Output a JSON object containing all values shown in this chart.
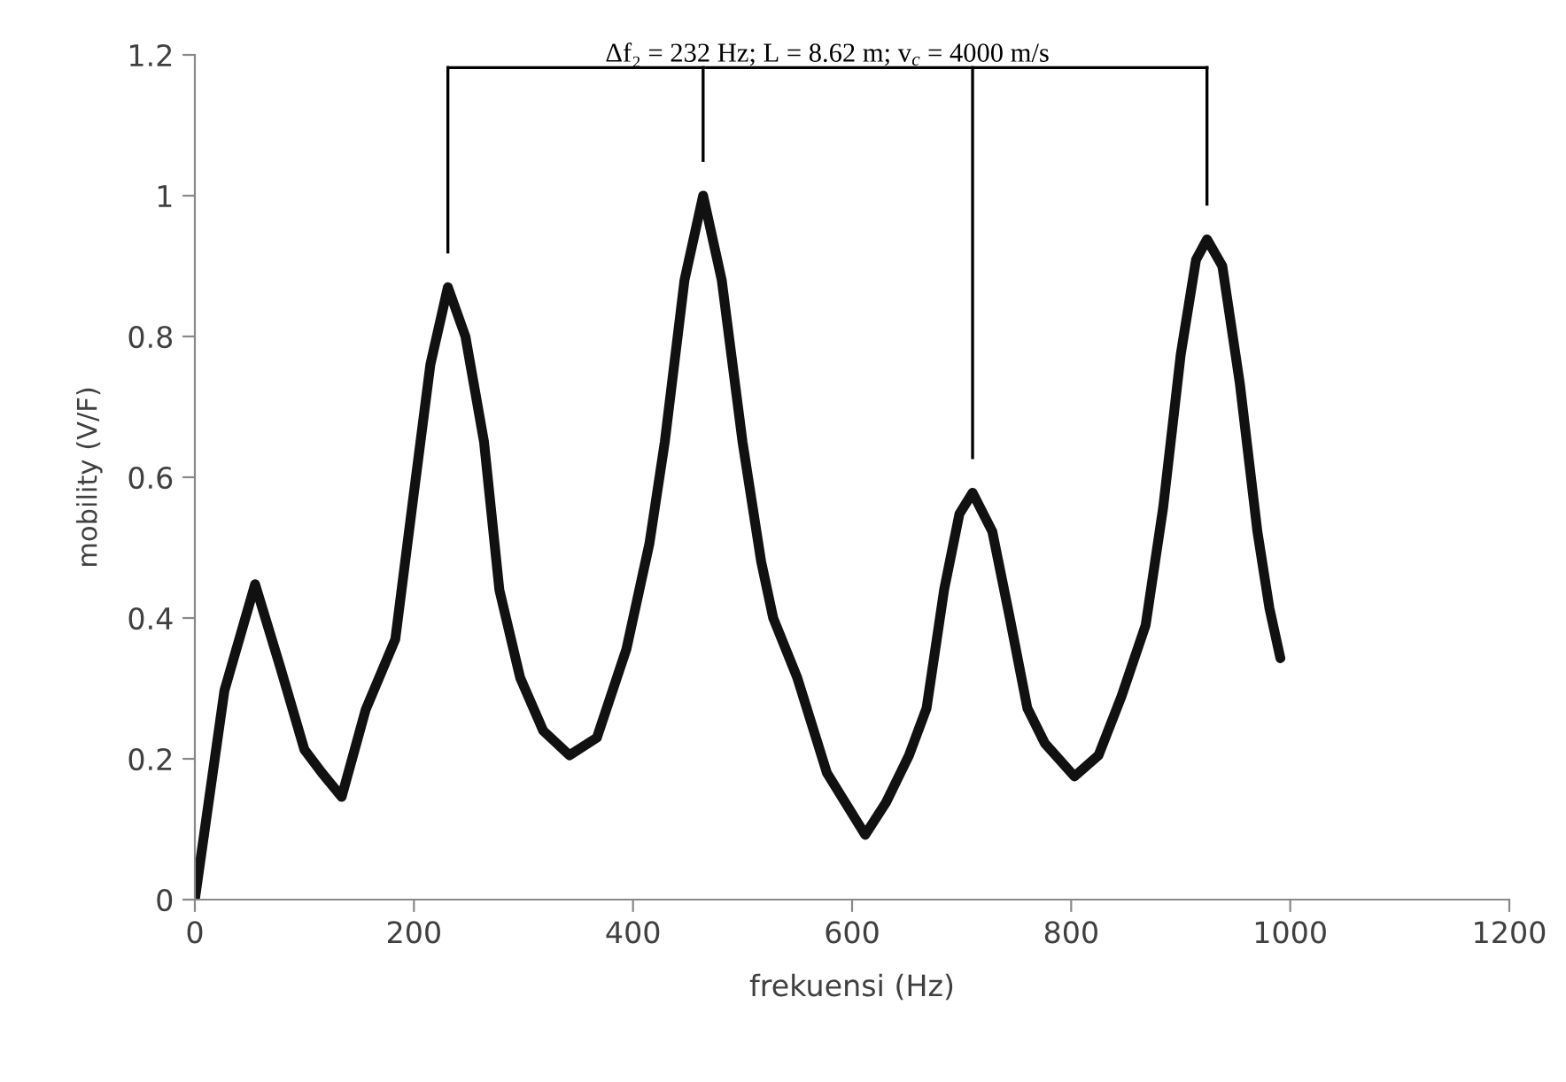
{
  "chart_data": {
    "type": "line",
    "xlabel": "frekuensi (Hz)",
    "ylabel": "mobility (V/F)",
    "annotations": [
      "Δf₂ = 232 Hz; L = 8.62 m; v$_{c}$ = 4000 m/s"
    ],
    "xlim": [
      0,
      1200
    ],
    "xticks": [
      0,
      200,
      400,
      600,
      800,
      1000,
      1200
    ],
    "ylim": [
      0,
      1.2
    ],
    "yticks": [
      0,
      0.2,
      0.4,
      0.6,
      0.8,
      1,
      1.2
    ],
    "grid": false,
    "legend": false,
    "marker": "none",
    "line_style": "solid",
    "series": [
      {
        "color": "#111111",
        "x": [
          0,
          27,
          55,
          78,
          100,
          116,
          134,
          156,
          183,
          199,
          215,
          231,
          247,
          264,
          278,
          297,
          318,
          342,
          367,
          394,
          415,
          429,
          447,
          464,
          481,
          500,
          517,
          528,
          550,
          577,
          612,
          631,
          652,
          668,
          684,
          698,
          710,
          728,
          744,
          760,
          776,
          803,
          825,
          846,
          868,
          884,
          900,
          914,
          924,
          938,
          954,
          970,
          981,
          991
        ],
        "values": [
          0,
          0.297,
          0.448,
          0.33,
          0.213,
          0.18,
          0.146,
          0.27,
          0.37,
          0.566,
          0.76,
          0.87,
          0.8,
          0.65,
          0.44,
          0.315,
          0.24,
          0.205,
          0.23,
          0.356,
          0.506,
          0.65,
          0.88,
          1.0,
          0.88,
          0.65,
          0.48,
          0.4,
          0.315,
          0.18,
          0.092,
          0.138,
          0.205,
          0.272,
          0.44,
          0.548,
          0.578,
          0.523,
          0.4,
          0.272,
          0.222,
          0.175,
          0.205,
          0.289,
          0.39,
          0.557,
          0.774,
          0.909,
          0.938,
          0.9,
          0.733,
          0.523,
          0.414,
          0.343
        ]
      }
    ]
  }
}
